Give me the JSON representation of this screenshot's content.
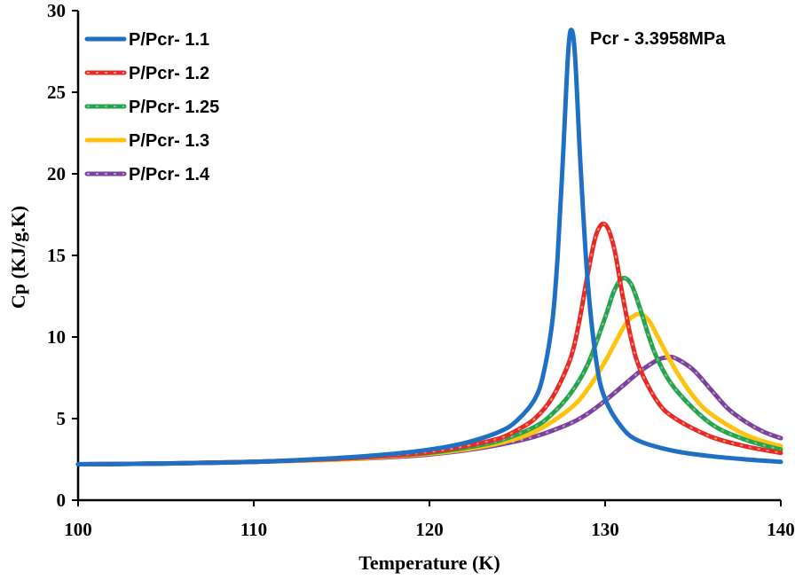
{
  "chart_data": {
    "type": "line",
    "title": "",
    "xlabel": "Temperature (K)",
    "ylabel": "Cp (KJ/g.K)",
    "xlim": [
      100,
      140
    ],
    "ylim": [
      0,
      30
    ],
    "x_ticks": [
      100,
      110,
      120,
      130,
      140
    ],
    "y_ticks": [
      0,
      5,
      10,
      15,
      20,
      25,
      30
    ],
    "x_tick_labels": [
      "100",
      "110",
      "120",
      "130",
      "140"
    ],
    "y_tick_labels": [
      "0",
      "5",
      "10",
      "15",
      "20",
      "25",
      "30"
    ],
    "grid": false,
    "legend_position": "top-left",
    "annotation": "Pcr - 3.3958MPa",
    "series": [
      {
        "name": "P/Pcr- 1.1",
        "color": "#1f6fc4",
        "dash_color": "",
        "x": [
          100,
          105,
          110,
          115,
          118,
          120,
          122,
          124,
          125,
          126,
          126.5,
          127,
          127.3,
          127.6,
          127.9,
          128.1,
          128.3,
          128.6,
          129,
          129.5,
          130,
          131,
          132,
          134,
          136,
          138,
          140
        ],
        "y": [
          2.2,
          2.25,
          2.35,
          2.6,
          2.85,
          3.1,
          3.5,
          4.2,
          4.9,
          6.2,
          7.8,
          11.0,
          15.0,
          21.0,
          27.5,
          28.8,
          27.0,
          20.5,
          13.5,
          8.5,
          6.2,
          4.4,
          3.6,
          3.0,
          2.7,
          2.5,
          2.35
        ]
      },
      {
        "name": "P/Pcr- 1.2",
        "color": "#e8282b",
        "dash_color": "#f0a060",
        "x": [
          100,
          105,
          110,
          115,
          118,
          120,
          122,
          124,
          125,
          126,
          127,
          128,
          128.5,
          129,
          129.5,
          130,
          130.5,
          131,
          131.5,
          132,
          133,
          134,
          136,
          138,
          140
        ],
        "y": [
          2.2,
          2.25,
          2.35,
          2.55,
          2.75,
          2.95,
          3.3,
          3.8,
          4.3,
          5.0,
          6.3,
          8.6,
          10.8,
          13.8,
          16.3,
          16.9,
          15.5,
          12.5,
          9.8,
          8.0,
          6.0,
          5.0,
          3.9,
          3.3,
          2.9
        ]
      },
      {
        "name": "P/Pcr- 1.25",
        "color": "#1fa84a",
        "dash_color": "#a8a8a8",
        "x": [
          100,
          105,
          110,
          115,
          118,
          120,
          122,
          124,
          126,
          127,
          128,
          129,
          130,
          130.5,
          131,
          131.5,
          132,
          132.5,
          133,
          134,
          136,
          138,
          140
        ],
        "y": [
          2.2,
          2.25,
          2.35,
          2.55,
          2.75,
          2.9,
          3.2,
          3.65,
          4.5,
          5.3,
          6.5,
          8.3,
          11.2,
          12.8,
          13.6,
          13.2,
          11.7,
          10.0,
          8.6,
          6.8,
          4.7,
          3.7,
          3.1
        ]
      },
      {
        "name": "P/Pcr- 1.3",
        "color": "#ffc20e",
        "dash_color": "",
        "x": [
          100,
          105,
          110,
          115,
          118,
          120,
          122,
          124,
          126,
          128,
          129,
          130,
          131,
          131.5,
          132,
          132.5,
          133,
          134,
          135,
          136,
          138,
          140
        ],
        "y": [
          2.2,
          2.25,
          2.35,
          2.5,
          2.7,
          2.85,
          3.1,
          3.5,
          4.2,
          5.6,
          6.8,
          8.5,
          10.5,
          11.2,
          11.4,
          11.0,
          10.0,
          8.0,
          6.4,
          5.3,
          4.0,
          3.3
        ]
      },
      {
        "name": "P/Pcr- 1.4",
        "color": "#7d3fa0",
        "dash_color": "#a8a8a8",
        "x": [
          100,
          105,
          110,
          115,
          118,
          120,
          122,
          124,
          126,
          128,
          129,
          130,
          131,
          132,
          133,
          133.5,
          134,
          135,
          136,
          137,
          138,
          139,
          140
        ],
        "y": [
          2.2,
          2.25,
          2.35,
          2.5,
          2.65,
          2.8,
          3.05,
          3.4,
          3.9,
          4.7,
          5.3,
          6.1,
          7.0,
          7.9,
          8.6,
          8.75,
          8.7,
          8.0,
          6.8,
          5.6,
          4.8,
          4.2,
          3.8
        ]
      }
    ]
  }
}
